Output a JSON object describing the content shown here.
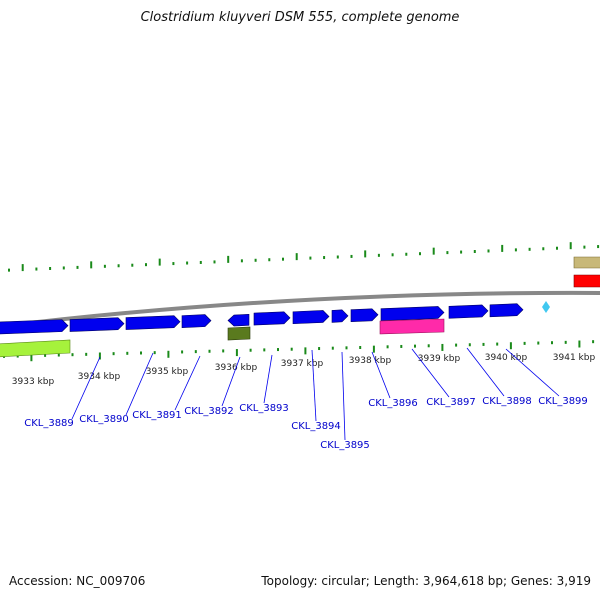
{
  "title": "Clostridium kluyveri DSM 555, complete genome",
  "footer": {
    "accession": "Accession: NC_009706",
    "summary": "Topology: circular; Length: 3,964,618 bp; Genes: 3,919"
  },
  "colors": {
    "backbone": "#888888",
    "tick": "#1a8a1a",
    "cds_forward": "#0000ee",
    "gene_label": "#0000cc",
    "leader_line": "#0000ee",
    "feature_lime": "#a6f23c",
    "feature_olive": "#5a7a1e",
    "feature_magenta": "#ff2aa9",
    "feature_tan": "#c8b878",
    "feature_red": "#ff0000",
    "feature_cyan": "#40c8f0"
  },
  "scale_labels": [
    "3933 kbp",
    "3934 kbp",
    "3935 kbp",
    "3936 kbp",
    "3937 kbp",
    "3938 kbp",
    "3939 kbp",
    "3940 kbp",
    "3941 kbp"
  ],
  "genes": [
    "CKL_3889",
    "CKL_3890",
    "CKL_3891",
    "CKL_3892",
    "CKL_3893",
    "CKL_3894",
    "CKL_3895",
    "CKL_3896",
    "CKL_3897",
    "CKL_3898",
    "CKL_3899"
  ]
}
